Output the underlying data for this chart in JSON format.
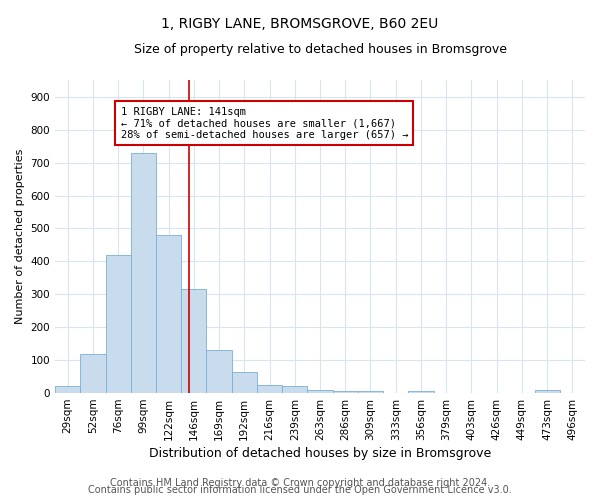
{
  "title": "1, RIGBY LANE, BROMSGROVE, B60 2EU",
  "subtitle": "Size of property relative to detached houses in Bromsgrove",
  "xlabel": "Distribution of detached houses by size in Bromsgrove",
  "ylabel": "Number of detached properties",
  "categories": [
    "29sqm",
    "52sqm",
    "76sqm",
    "99sqm",
    "122sqm",
    "146sqm",
    "169sqm",
    "192sqm",
    "216sqm",
    "239sqm",
    "263sqm",
    "286sqm",
    "309sqm",
    "333sqm",
    "356sqm",
    "379sqm",
    "403sqm",
    "426sqm",
    "449sqm",
    "473sqm",
    "496sqm"
  ],
  "values": [
    20,
    120,
    420,
    730,
    480,
    315,
    130,
    65,
    25,
    20,
    10,
    5,
    5,
    0,
    5,
    0,
    0,
    0,
    0,
    10,
    0
  ],
  "bar_color": "#c9dced",
  "bar_edge_color": "#7aafd4",
  "property_line_x": 4.82,
  "property_line_color": "#cc0000",
  "annotation_text": "1 RIGBY LANE: 141sqm\n← 71% of detached houses are smaller (1,667)\n28% of semi-detached houses are larger (657) →",
  "annotation_box_facecolor": "#ffffff",
  "annotation_box_edgecolor": "#cc0000",
  "ylim": [
    0,
    950
  ],
  "yticks": [
    0,
    100,
    200,
    300,
    400,
    500,
    600,
    700,
    800,
    900
  ],
  "footer1": "Contains HM Land Registry data © Crown copyright and database right 2024.",
  "footer2": "Contains public sector information licensed under the Open Government Licence v3.0.",
  "background_color": "#ffffff",
  "plot_bg_color": "#ffffff",
  "grid_color": "#d8e4f0",
  "title_fontsize": 10,
  "subtitle_fontsize": 9,
  "xlabel_fontsize": 9,
  "ylabel_fontsize": 8,
  "tick_fontsize": 7.5,
  "footer_fontsize": 7,
  "annot_fontsize": 7.5
}
